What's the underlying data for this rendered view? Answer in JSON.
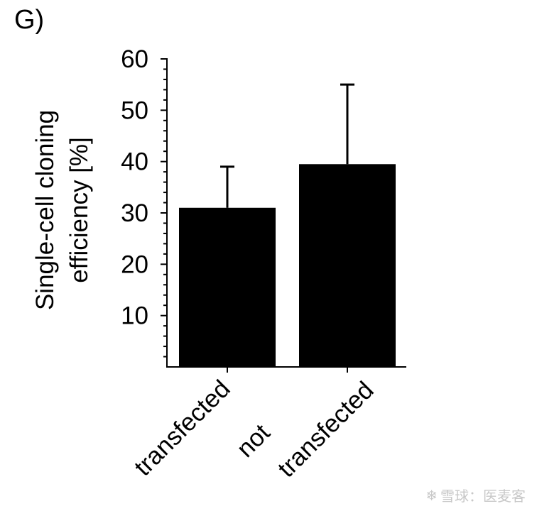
{
  "panel_label": "G)",
  "watermark": {
    "icon": "snowball-logo-icon",
    "text": "雪球：医麦客"
  },
  "colors": {
    "bar": "#000000",
    "axis": "#000000",
    "background": "#ffffff"
  },
  "chart_data": {
    "type": "bar",
    "title": "",
    "xlabel": "",
    "ylabel_lines": [
      "Single-cell cloning",
      "efficiency [%]"
    ],
    "ylim": [
      0,
      60
    ],
    "yticks": [
      10,
      20,
      30,
      40,
      50,
      60
    ],
    "minor_tick_step": 2,
    "grid": false,
    "categories": [
      {
        "lines": [
          "transfected"
        ]
      },
      {
        "lines": [
          "not",
          "transfected"
        ]
      }
    ],
    "values": [
      31,
      39.5
    ],
    "errors": [
      8,
      15.5
    ]
  }
}
